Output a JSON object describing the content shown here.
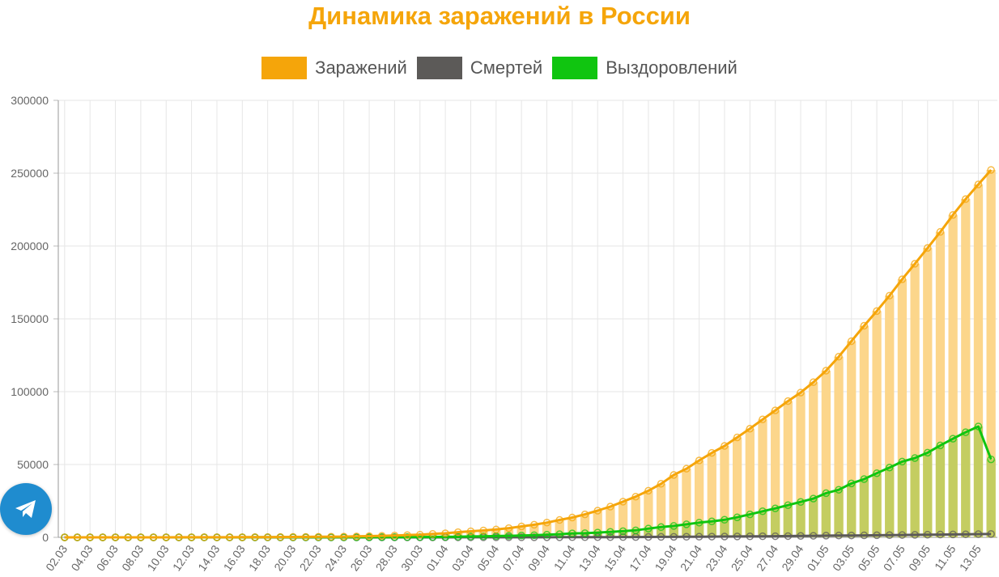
{
  "title": "Динамика заражений в России",
  "colors": {
    "infected": "#f5a50a",
    "infected_bar": "#fcd68b",
    "deaths": "#5c5a58",
    "recovered": "#10c510",
    "recovered_bar": "#c4cd61",
    "grid": "#e6e6e6",
    "title": "#f5a50a"
  },
  "legend": [
    {
      "label": "Заражений",
      "color": "#f5a50a"
    },
    {
      "label": "Смертей",
      "color": "#5c5a58"
    },
    {
      "label": "Выздоровлений",
      "color": "#10c510"
    }
  ],
  "telegram_button": {
    "icon": "telegram-paper-plane-icon",
    "color": "#1f8ccf"
  },
  "chart_data": {
    "type": "line",
    "ylim": [
      0,
      300000
    ],
    "y_ticks": [
      "0",
      "50000",
      "100000",
      "150000",
      "200000",
      "250000",
      "300000"
    ],
    "x_tick_labels": [
      "02.03",
      "04.03",
      "06.03",
      "08.03",
      "10.03",
      "12.03",
      "14.03",
      "16.03",
      "18.03",
      "20.03",
      "22.03",
      "24.03",
      "26.03",
      "28.03",
      "30.03",
      "01.04",
      "03.04",
      "05.04",
      "07.04",
      "09.04",
      "11.04",
      "13.04",
      "15.04",
      "17.04",
      "19.04",
      "21.04",
      "23.04",
      "25.04",
      "27.04",
      "29.04",
      "01.05",
      "03.05",
      "05.05",
      "07.05",
      "09.05",
      "11.05",
      "13.05"
    ],
    "categories": [
      "02.03",
      "03.03",
      "04.03",
      "05.03",
      "06.03",
      "07.03",
      "08.03",
      "09.03",
      "10.03",
      "11.03",
      "12.03",
      "13.03",
      "14.03",
      "15.03",
      "16.03",
      "17.03",
      "18.03",
      "19.03",
      "20.03",
      "21.03",
      "22.03",
      "23.03",
      "24.03",
      "25.03",
      "26.03",
      "27.03",
      "28.03",
      "29.03",
      "30.03",
      "31.03",
      "01.04",
      "02.04",
      "03.04",
      "04.04",
      "05.04",
      "06.04",
      "07.04",
      "08.04",
      "09.04",
      "10.04",
      "11.04",
      "12.04",
      "13.04",
      "14.04",
      "15.04",
      "16.04",
      "17.04",
      "18.04",
      "19.04",
      "20.04",
      "21.04",
      "22.04",
      "23.04",
      "24.04",
      "25.04",
      "26.04",
      "27.04",
      "28.04",
      "29.04",
      "30.04",
      "01.05",
      "02.05",
      "03.05",
      "04.05",
      "05.05",
      "06.05",
      "07.05",
      "08.05",
      "09.05",
      "10.05",
      "11.05",
      "12.05",
      "13.05",
      "14.05"
    ],
    "series": [
      {
        "name": "Заражений",
        "style": "line+bar",
        "values": [
          3,
          3,
          3,
          4,
          7,
          10,
          17,
          17,
          20,
          28,
          34,
          45,
          59,
          63,
          93,
          114,
          147,
          199,
          253,
          306,
          367,
          438,
          495,
          658,
          840,
          1036,
          1264,
          1534,
          1836,
          2337,
          2777,
          3548,
          4149,
          4731,
          5389,
          6343,
          7497,
          8672,
          10131,
          11917,
          13584,
          15770,
          18328,
          21102,
          24490,
          27938,
          32008,
          36793,
          42853,
          47121,
          52763,
          57999,
          62773,
          68622,
          74588,
          80949,
          87147,
          93558,
          99399,
          106498,
          114431,
          124054,
          134687,
          145268,
          155370,
          165929,
          177160,
          187859,
          198676,
          209688,
          221344,
          232243,
          242271,
          252245
        ]
      },
      {
        "name": "Смертей",
        "style": "line",
        "values": [
          0,
          0,
          0,
          0,
          0,
          0,
          0,
          0,
          0,
          0,
          0,
          0,
          0,
          0,
          0,
          0,
          0,
          1,
          1,
          1,
          1,
          1,
          1,
          2,
          3,
          4,
          4,
          8,
          9,
          17,
          24,
          30,
          34,
          43,
          45,
          47,
          58,
          63,
          76,
          94,
          106,
          130,
          148,
          170,
          198,
          232,
          273,
          313,
          361,
          405,
          456,
          513,
          555,
          615,
          681,
          747,
          794,
          867,
          972,
          1073,
          1169,
          1222,
          1280,
          1356,
          1451,
          1537,
          1625,
          1723,
          1827,
          1915,
          2009,
          2116,
          2212,
          2305
        ]
      },
      {
        "name": "Выздоровлений",
        "style": "line+bar",
        "values": [
          0,
          0,
          0,
          0,
          0,
          0,
          0,
          0,
          0,
          1,
          3,
          5,
          8,
          12,
          22,
          29,
          38,
          43,
          49,
          57,
          64,
          68,
          73,
          79,
          95,
          132,
          171,
          182,
          207,
          262,
          339,
          454,
          594,
          706,
          862,
          1053,
          1227,
          1472,
          1789,
          2155,
          2695,
          2840,
          3273,
          3754,
          4211,
          4810,
          6013,
          7049,
          7826,
          8956,
          10101,
          10955,
          12071,
          13754,
          15765,
          17911,
          19865,
          22104,
          24312,
          26601,
          30346,
          32667,
          37017,
          40004,
          44046,
          47910,
          51982,
          54452,
          58120,
          63132,
          67734,
          72140,
          76138,
          53530
        ]
      }
    ]
  }
}
